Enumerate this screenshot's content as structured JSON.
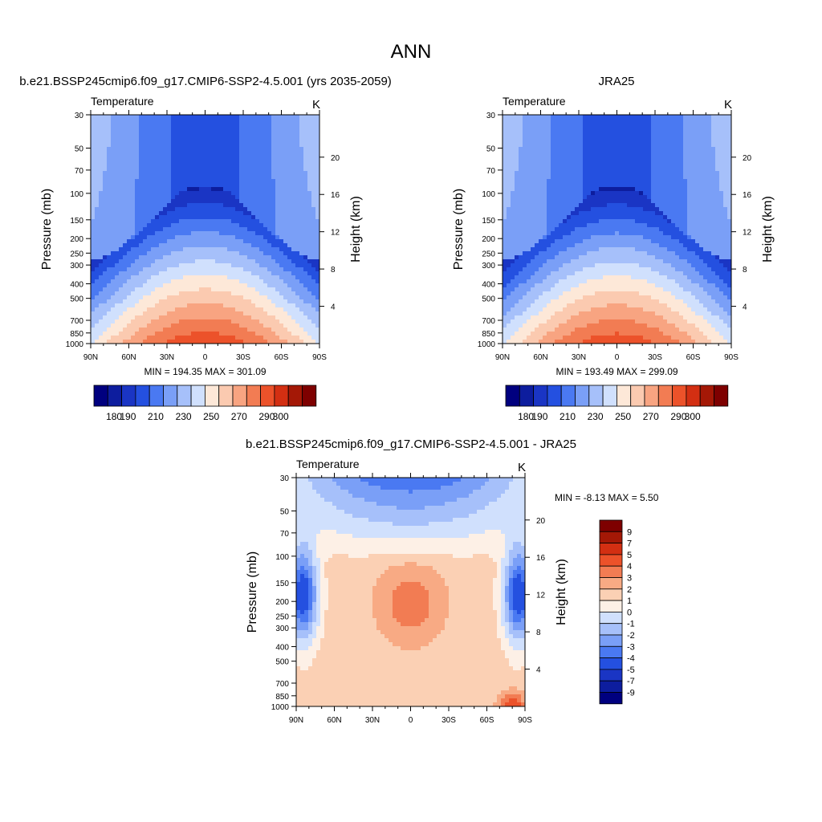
{
  "page_title": "ANN",
  "colors": {
    "abs_levels": [
      "#00007f",
      "#0d1d9e",
      "#1a35c4",
      "#2450e0",
      "#4a79f2",
      "#7a9ff7",
      "#a6c0fa",
      "#d0e0fd",
      "#fde8d8",
      "#fbcab0",
      "#f8a481",
      "#f27c53",
      "#ec522a",
      "#d32f12",
      "#a41806",
      "#7e0000"
    ],
    "diff_levels": [
      "#00007f",
      "#0d1d9e",
      "#1a35c4",
      "#2450e0",
      "#4a79f2",
      "#7a9ff7",
      "#a6c0fa",
      "#d0e0fd",
      "#fdf0e6",
      "#fbd0b4",
      "#f8aa84",
      "#f27c53",
      "#ec522a",
      "#d32f12",
      "#a41806",
      "#7e0000"
    ]
  },
  "chart_data": [
    {
      "type": "heatmap",
      "title": "b.e21.BSSP245cmip6.f09_g17.CMIP6-SSP2-4.5.001 (yrs 2035-2059)",
      "subtitle_left": "Temperature",
      "units": "K",
      "ylabel": "Pressure (mb)",
      "ylabel_right": "Height (km)",
      "x_ticks": [
        "90N",
        "60N",
        "30N",
        "0",
        "30S",
        "60S",
        "90S"
      ],
      "y_ticks": [
        "30",
        "50",
        "70",
        "100",
        "150",
        "200",
        "250",
        "300",
        "400",
        "500",
        "700",
        "850",
        "1000"
      ],
      "y_right_ticks": [
        "20",
        "16",
        "12",
        "8",
        "4"
      ],
      "stats": "MIN = 194.35  MAX = 301.09",
      "min": 194.35,
      "max": 301.09,
      "colorbar_labels": [
        "180",
        "190",
        "210",
        "230",
        "250",
        "270",
        "290",
        "300"
      ]
    },
    {
      "type": "heatmap",
      "title": "JRA25",
      "subtitle_left": "Temperature",
      "units": "K",
      "ylabel": "Pressure (mb)",
      "ylabel_right": "Height (km)",
      "x_ticks": [
        "90N",
        "60N",
        "30N",
        "0",
        "30S",
        "60S",
        "90S"
      ],
      "y_ticks": [
        "30",
        "50",
        "70",
        "100",
        "150",
        "200",
        "250",
        "300",
        "400",
        "500",
        "700",
        "850",
        "1000"
      ],
      "y_right_ticks": [
        "20",
        "16",
        "12",
        "8",
        "4"
      ],
      "stats": "MIN = 193.49  MAX = 299.09",
      "min": 193.49,
      "max": 299.09,
      "colorbar_labels": [
        "180",
        "190",
        "210",
        "230",
        "250",
        "270",
        "290",
        "300"
      ]
    },
    {
      "type": "heatmap",
      "title": "b.e21.BSSP245cmip6.f09_g17.CMIP6-SSP2-4.5.001 - JRA25",
      "subtitle_left": "Temperature",
      "units": "K",
      "ylabel": "Pressure (mb)",
      "ylabel_right": "Height (km)",
      "x_ticks": [
        "90N",
        "60N",
        "30N",
        "0",
        "30S",
        "60S",
        "90S"
      ],
      "y_ticks": [
        "30",
        "50",
        "70",
        "100",
        "150",
        "200",
        "250",
        "300",
        "400",
        "500",
        "700",
        "850",
        "1000"
      ],
      "y_right_ticks": [
        "20",
        "16",
        "12",
        "8",
        "4"
      ],
      "stats": "MIN =  -8.13  MAX =   5.50",
      "min": -8.13,
      "max": 5.5,
      "colorbar_labels": [
        "9",
        "7",
        "5",
        "4",
        "3",
        "2",
        "1",
        "0",
        "-1",
        "-2",
        "-3",
        "-4",
        "-5",
        "-7",
        "-9"
      ]
    }
  ]
}
